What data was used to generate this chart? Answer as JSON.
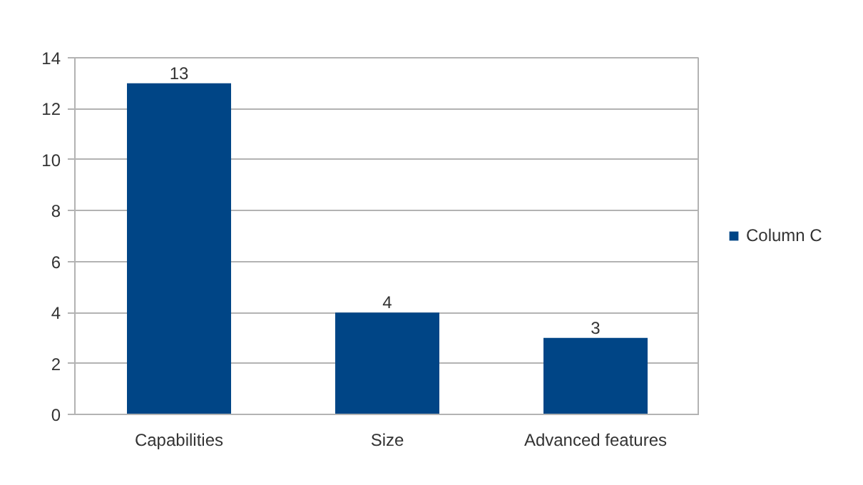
{
  "chart_data": {
    "type": "bar",
    "categories": [
      "Capabilities",
      "Size",
      "Advanced features"
    ],
    "series": [
      {
        "name": "Column C",
        "color": "#004586",
        "values": [
          13,
          4,
          3
        ]
      }
    ],
    "ylim": [
      0,
      14
    ],
    "yticks": [
      0,
      2,
      4,
      6,
      8,
      10,
      12,
      14
    ],
    "grid": "y",
    "legend": "right",
    "data_labels": true
  }
}
